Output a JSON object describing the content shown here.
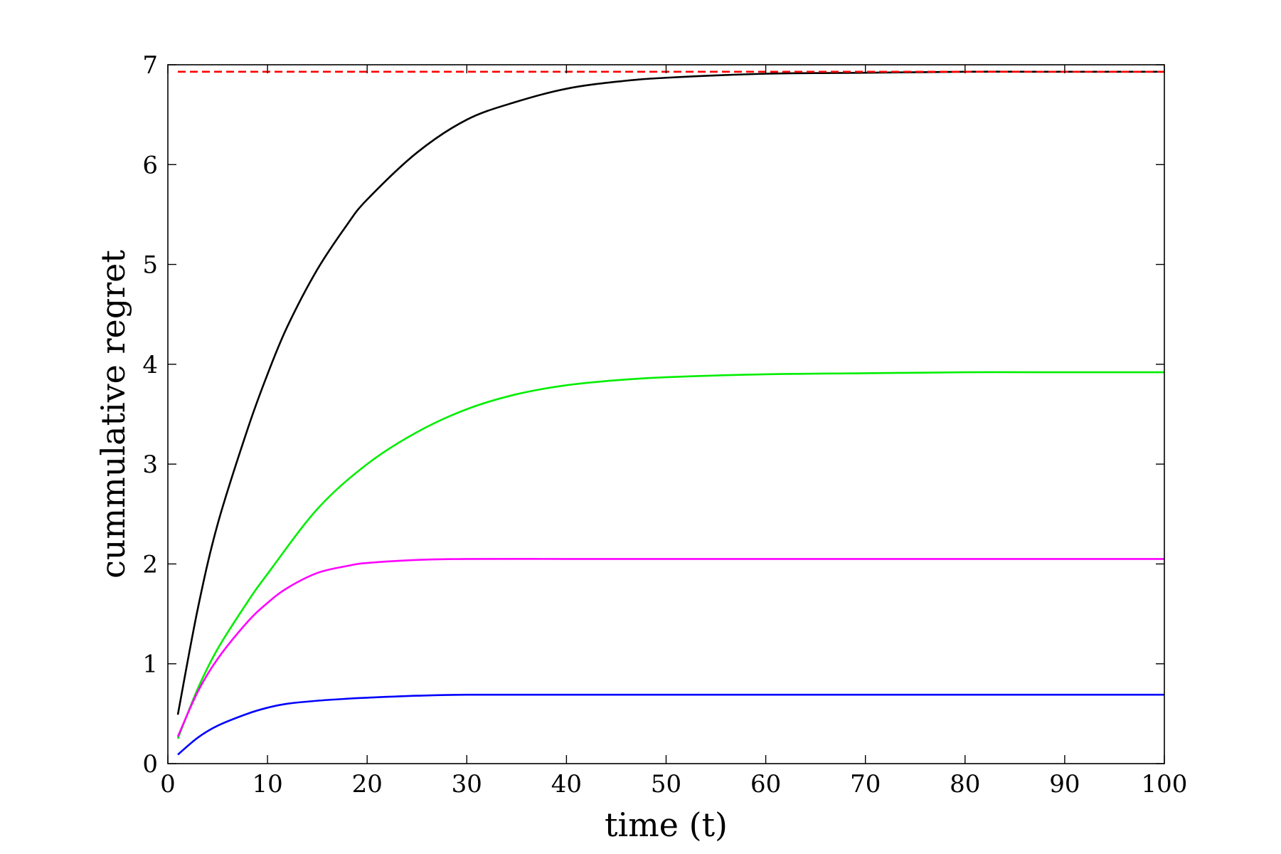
{
  "chart_data": {
    "type": "line",
    "xlabel": "time (t)",
    "ylabel": "cummulative regret",
    "xlim": [
      0,
      100
    ],
    "ylim": [
      0,
      7
    ],
    "x_ticks": [
      0,
      10,
      20,
      30,
      40,
      50,
      60,
      70,
      80,
      90,
      100
    ],
    "y_ticks": [
      0,
      1,
      2,
      3,
      4,
      5,
      6,
      7
    ],
    "x_tick_labels": [
      "0",
      "10",
      "20",
      "30",
      "40",
      "50",
      "60",
      "70",
      "80",
      "90",
      "100"
    ],
    "y_tick_labels": [
      "0",
      "1",
      "2",
      "3",
      "4",
      "5",
      "6",
      "7"
    ],
    "grid": false,
    "series": [
      {
        "color": "#000000",
        "style": "solid",
        "x": [
          1,
          3,
          5,
          8,
          10,
          12,
          15,
          18,
          20,
          25,
          30,
          35,
          40,
          45,
          50,
          60,
          70,
          80,
          90,
          100
        ],
        "y": [
          0.49,
          1.55,
          2.4,
          3.35,
          3.9,
          4.38,
          4.95,
          5.4,
          5.65,
          6.12,
          6.45,
          6.63,
          6.76,
          6.83,
          6.87,
          6.91,
          6.92,
          6.93,
          6.93,
          6.93
        ]
      },
      {
        "color": "#00ee00",
        "style": "solid",
        "x": [
          1,
          3,
          5,
          8,
          10,
          15,
          20,
          25,
          30,
          35,
          40,
          45,
          50,
          60,
          70,
          80,
          90,
          100
        ],
        "y": [
          0.25,
          0.75,
          1.15,
          1.62,
          1.9,
          2.55,
          3.0,
          3.32,
          3.55,
          3.7,
          3.79,
          3.84,
          3.87,
          3.9,
          3.91,
          3.92,
          3.92,
          3.92
        ]
      },
      {
        "color": "#ff00ff",
        "style": "solid",
        "x": [
          1,
          3,
          5,
          8,
          10,
          12,
          15,
          18,
          20,
          25,
          30,
          40,
          50,
          60,
          70,
          80,
          90,
          100
        ],
        "y": [
          0.27,
          0.72,
          1.05,
          1.42,
          1.61,
          1.76,
          1.91,
          1.98,
          2.01,
          2.04,
          2.05,
          2.05,
          2.05,
          2.05,
          2.05,
          2.05,
          2.05,
          2.05
        ]
      },
      {
        "color": "#0000ff",
        "style": "solid",
        "x": [
          1,
          3,
          5,
          8,
          10,
          12,
          15,
          18,
          20,
          25,
          30,
          40,
          50,
          60,
          70,
          80,
          90,
          100
        ],
        "y": [
          0.09,
          0.26,
          0.38,
          0.5,
          0.56,
          0.6,
          0.63,
          0.65,
          0.66,
          0.68,
          0.69,
          0.69,
          0.69,
          0.69,
          0.69,
          0.69,
          0.69,
          0.69
        ]
      },
      {
        "color": "#ff0000",
        "style": "dashed",
        "x": [
          1,
          100
        ],
        "y": [
          6.93,
          6.93
        ]
      }
    ]
  }
}
